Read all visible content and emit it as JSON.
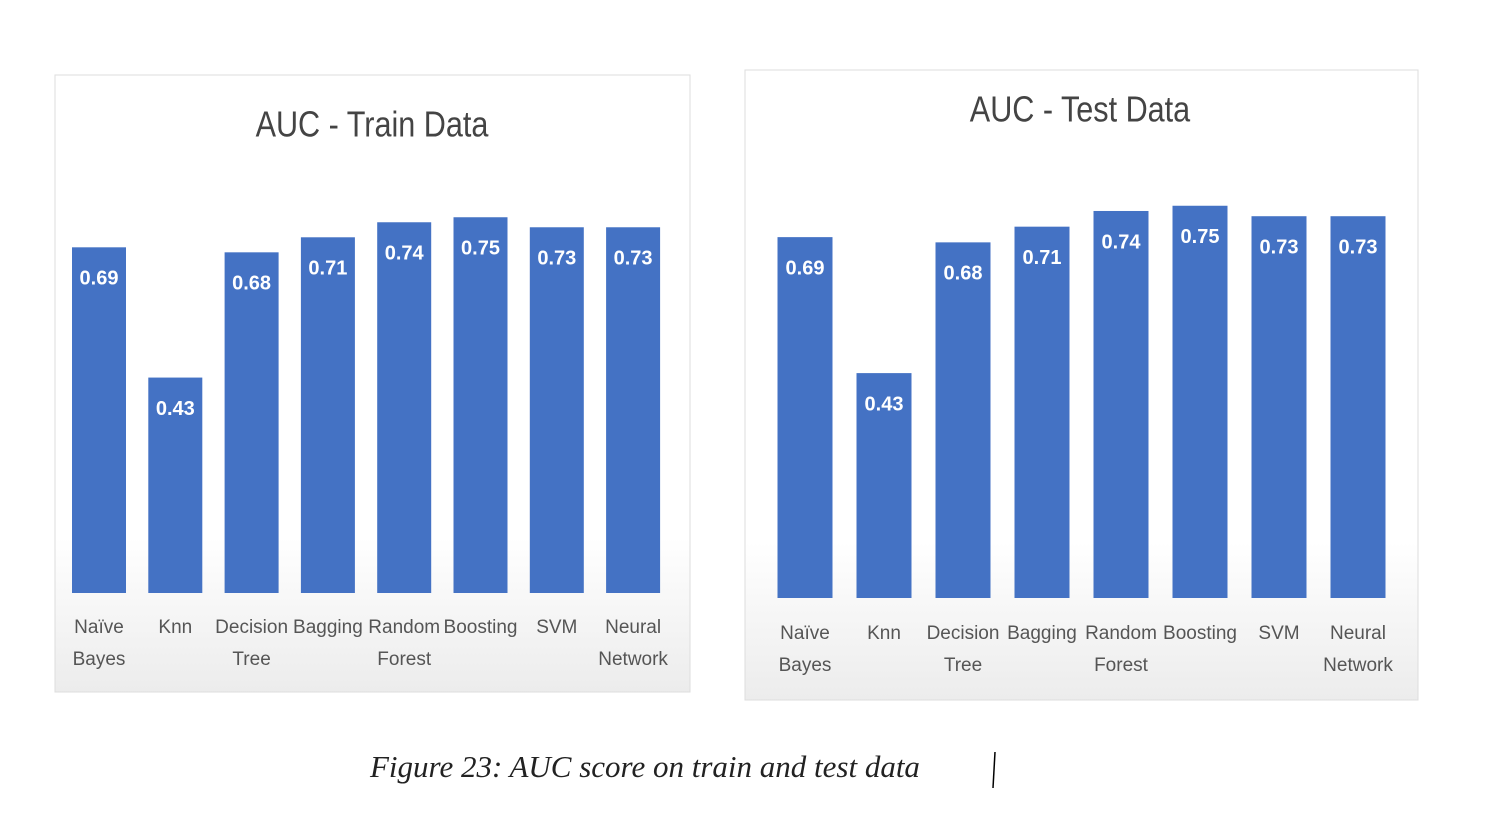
{
  "chart_data": [
    {
      "type": "bar",
      "title": "AUC - Train Data",
      "categories": [
        "Naïve Bayes",
        "Knn",
        "Decision Tree",
        "Bagging",
        "Random Forest",
        "Boosting",
        "SVM",
        "Neural Network"
      ],
      "values": [
        0.69,
        0.43,
        0.68,
        0.71,
        0.74,
        0.75,
        0.73,
        0.73
      ],
      "color": "#4472c4"
    },
    {
      "type": "bar",
      "title": "AUC - Test Data",
      "categories": [
        "Naïve Bayes",
        "Knn",
        "Decision Tree",
        "Bagging",
        "Random Forest",
        "Boosting",
        "SVM",
        "Neural Network"
      ],
      "values": [
        0.69,
        0.43,
        0.68,
        0.71,
        0.74,
        0.75,
        0.73,
        0.73
      ],
      "color": "#4472c4"
    }
  ],
  "caption": "Figure 23: AUC score on train and test data"
}
